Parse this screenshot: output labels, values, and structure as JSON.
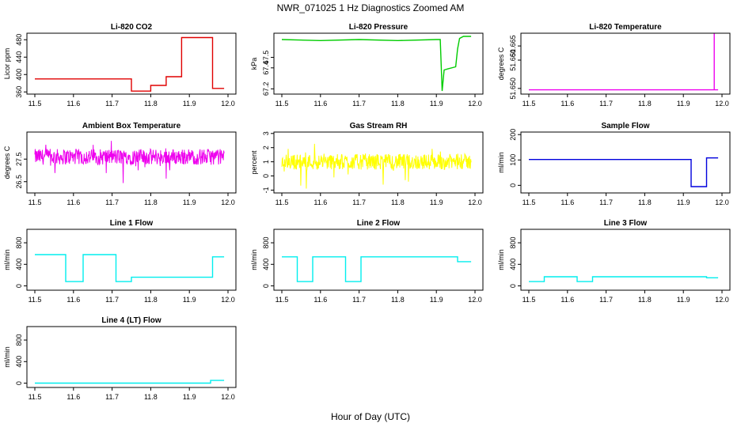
{
  "figure": {
    "title": "NWR_071025  1 Hz Diagnostics Zoomed AM",
    "xlabel": "Hour of Day (UTC)"
  },
  "chart_data": [
    {
      "type": "line",
      "title": "Li-820 CO2",
      "ylabel": "Licor ppm",
      "color": "#e00000",
      "xlim": [
        11.5,
        12.0
      ],
      "ylim": [
        355,
        495
      ],
      "x_ticks": [
        "11.5",
        "11.6",
        "11.7",
        "11.8",
        "11.9",
        "12.0"
      ],
      "y_ticks": [
        "360",
        "400",
        "440",
        "480"
      ],
      "series": [
        {
          "x": [
            11.5,
            11.75,
            11.75,
            11.8,
            11.8,
            11.84,
            11.84,
            11.88,
            11.88,
            11.96,
            11.96,
            11.99
          ],
          "y": [
            390,
            390,
            362,
            362,
            375,
            375,
            395,
            395,
            485,
            485,
            368,
            368
          ]
        }
      ]
    },
    {
      "type": "line",
      "title": "Li-820 Pressure",
      "ylabel": "kPa",
      "color": "#00cc00",
      "xlim": [
        11.5,
        12.0
      ],
      "ylim": [
        67.15,
        67.73
      ],
      "x_ticks": [
        "11.5",
        "11.6",
        "11.7",
        "11.8",
        "11.9",
        "12.0"
      ],
      "y_ticks": [
        "67.2",
        "67.4",
        "67.5"
      ],
      "series": [
        {
          "x": [
            11.5,
            11.6,
            11.7,
            11.8,
            11.9,
            11.91,
            11.915,
            11.92,
            11.93,
            11.95,
            11.955,
            11.96,
            11.97,
            11.99
          ],
          "y": [
            67.67,
            67.66,
            67.67,
            67.66,
            67.67,
            67.67,
            67.18,
            67.38,
            67.39,
            67.41,
            67.58,
            67.68,
            67.7,
            67.7
          ]
        }
      ]
    },
    {
      "type": "line",
      "title": "Li-820 Temperature",
      "ylabel": "degrees C",
      "color": "#ee00ee",
      "xlim": [
        11.5,
        12.0
      ],
      "ylim": [
        51.648,
        51.6695
      ],
      "x_ticks": [
        "11.5",
        "11.6",
        "11.7",
        "11.8",
        "11.9",
        "12.0"
      ],
      "y_ticks": [
        "51.650",
        "51.660",
        "51.665"
      ],
      "series": [
        {
          "x": [
            11.5,
            11.98,
            11.98,
            11.98,
            11.99
          ],
          "y": [
            51.6495,
            51.6495,
            51.6695,
            51.6495,
            51.6495
          ]
        }
      ]
    },
    {
      "type": "line",
      "title": "Ambient Box Temperature",
      "ylabel": "degrees C",
      "color": "#ee00ee",
      "xlim": [
        11.5,
        12.0
      ],
      "ylim": [
        26.0,
        28.7
      ],
      "x_ticks": [
        "11.5",
        "11.6",
        "11.7",
        "11.8",
        "11.9",
        "12.0"
      ],
      "y_ticks": [
        "26.5",
        "27.5"
      ],
      "series": [
        {
          "x": [
            11.5,
            11.99
          ],
          "y": [
            27.6,
            27.6
          ]
        }
      ]
    },
    {
      "type": "line",
      "title": "Gas Stream RH",
      "ylabel": "percent",
      "color": "#ffff00",
      "xlim": [
        11.5,
        12.0
      ],
      "ylim": [
        -1.2,
        3.1
      ],
      "x_ticks": [
        "11.5",
        "11.6",
        "11.7",
        "11.8",
        "11.9",
        "12.0"
      ],
      "y_ticks": [
        "-1",
        "0",
        "1",
        "2",
        "3"
      ],
      "series": [
        {
          "x": [
            11.5,
            11.99
          ],
          "y": [
            1.0,
            1.0
          ]
        }
      ]
    },
    {
      "type": "line",
      "title": "Sample Flow",
      "ylabel": "ml/min",
      "color": "#0000dd",
      "xlim": [
        11.5,
        12.0
      ],
      "ylim": [
        -30,
        210
      ],
      "x_ticks": [
        "11.5",
        "11.6",
        "11.7",
        "11.8",
        "11.9",
        "12.0"
      ],
      "y_ticks": [
        "0",
        "100",
        "200"
      ],
      "series": [
        {
          "x": [
            11.5,
            11.92,
            11.92,
            11.96,
            11.96,
            11.99
          ],
          "y": [
            102,
            102,
            -5,
            -5,
            108,
            108
          ]
        }
      ]
    },
    {
      "type": "line",
      "title": "Line 1 Flow",
      "ylabel": "ml/min",
      "color": "#00eeee",
      "xlim": [
        11.5,
        12.0
      ],
      "ylim": [
        -80,
        1050
      ],
      "x_ticks": [
        "11.5",
        "11.6",
        "11.7",
        "11.8",
        "11.9",
        "12.0"
      ],
      "y_ticks": [
        "0",
        "400",
        "800"
      ],
      "series": [
        {
          "x": [
            11.5,
            11.58,
            11.58,
            11.625,
            11.625,
            11.71,
            11.71,
            11.75,
            11.75,
            11.96,
            11.96,
            11.99
          ],
          "y": [
            580,
            580,
            80,
            80,
            580,
            580,
            80,
            80,
            160,
            160,
            540,
            540
          ]
        }
      ]
    },
    {
      "type": "line",
      "title": "Line 2 Flow",
      "ylabel": "ml/min",
      "color": "#00eeee",
      "xlim": [
        11.5,
        12.0
      ],
      "ylim": [
        -80,
        1050
      ],
      "x_ticks": [
        "11.5",
        "11.6",
        "11.7",
        "11.8",
        "11.9",
        "12.0"
      ],
      "y_ticks": [
        "0",
        "400",
        "800"
      ],
      "series": [
        {
          "x": [
            11.5,
            11.54,
            11.54,
            11.58,
            11.58,
            11.665,
            11.665,
            11.705,
            11.705,
            11.955,
            11.955,
            11.99
          ],
          "y": [
            540,
            540,
            80,
            80,
            540,
            540,
            80,
            80,
            540,
            540,
            450,
            450
          ]
        }
      ]
    },
    {
      "type": "line",
      "title": "Line 3 Flow",
      "ylabel": "ml/min",
      "color": "#00eeee",
      "xlim": [
        11.5,
        12.0
      ],
      "ylim": [
        -80,
        1050
      ],
      "x_ticks": [
        "11.5",
        "11.6",
        "11.7",
        "11.8",
        "11.9",
        "12.0"
      ],
      "y_ticks": [
        "0",
        "400",
        "800"
      ],
      "series": [
        {
          "x": [
            11.5,
            11.54,
            11.54,
            11.625,
            11.625,
            11.665,
            11.665,
            11.96,
            11.96,
            11.99
          ],
          "y": [
            80,
            80,
            170,
            170,
            80,
            80,
            170,
            170,
            150,
            150
          ]
        }
      ]
    },
    {
      "type": "line",
      "title": "Line 4 (LT) Flow",
      "ylabel": "ml/min",
      "color": "#00eeee",
      "xlim": [
        11.5,
        12.0
      ],
      "ylim": [
        -80,
        1050
      ],
      "x_ticks": [
        "11.5",
        "11.6",
        "11.7",
        "11.8",
        "11.9",
        "12.0"
      ],
      "y_ticks": [
        "0",
        "400",
        "800"
      ],
      "series": [
        {
          "x": [
            11.5,
            11.955,
            11.955,
            11.99
          ],
          "y": [
            0,
            0,
            50,
            50
          ]
        }
      ]
    }
  ]
}
